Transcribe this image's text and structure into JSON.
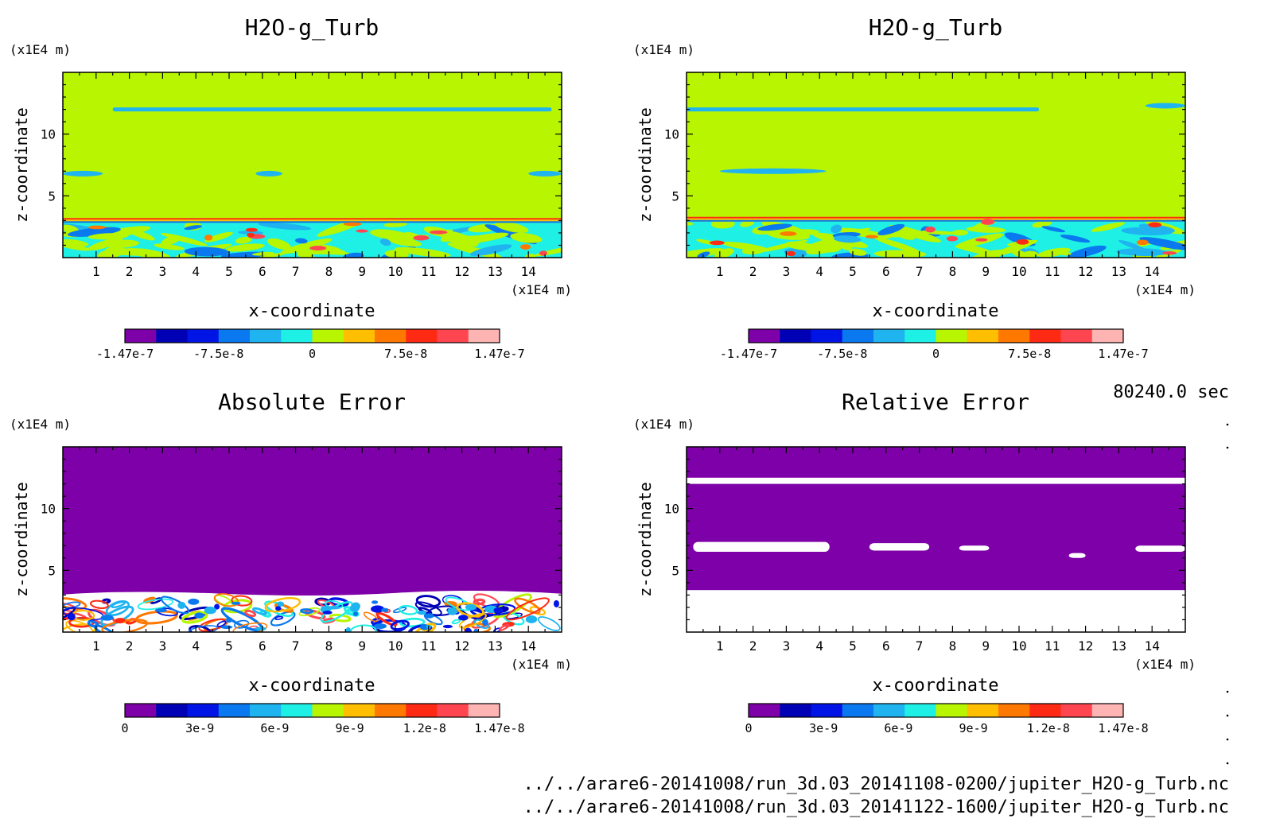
{
  "time_label": "80240.0 sec",
  "file_paths": [
    "../../arare6-20141008/run_3d.03_20141108-0200/jupiter_H2O-g_Turb.nc",
    "../../arare6-20141008/run_3d.03_20141122-1600/jupiter_H2O-g_Turb.nc"
  ],
  "colors": {
    "scale": [
      "#7e00a8",
      "#0000b4",
      "#0014e6",
      "#0a78ee",
      "#1fb4f0",
      "#1ef0e6",
      "#b8f500",
      "#ffbe00",
      "#ff7800",
      "#ff2a14",
      "#ff4650",
      "#ffb4b4"
    ],
    "field_bg": "#b8f500",
    "error_bg": "#7e00a8",
    "blank": "#ffffff"
  },
  "chart_data": [
    {
      "type": "heatmap",
      "title": "H2O-g_Turb",
      "xlabel": "x-coordinate",
      "ylabel": "z-coordinate",
      "x_unit": "(x1E4 m)",
      "y_unit": "(x1E4 m)",
      "xlim": [
        0,
        15
      ],
      "ylim": [
        0,
        15
      ],
      "x_ticks": [
        1,
        2,
        3,
        4,
        5,
        6,
        7,
        8,
        9,
        10,
        11,
        12,
        13,
        14
      ],
      "y_ticks": [
        5,
        10
      ],
      "colorbar_min": -1.47e-07,
      "colorbar_max": 1.47e-07,
      "colorbar_tick_labels": [
        "-1.47e-7",
        "-7.5e-8",
        "0",
        "7.5e-8",
        "1.47e-7"
      ],
      "features": [
        {
          "kind": "band",
          "z": 12.0,
          "x": [
            1.5,
            14.7
          ],
          "value": -3e-08
        },
        {
          "kind": "patch",
          "z": 6.8,
          "x": [
            0.0,
            1.2
          ],
          "value": -3e-08
        },
        {
          "kind": "patch",
          "z": 6.8,
          "x": [
            5.8,
            6.6
          ],
          "value": -3e-08
        },
        {
          "kind": "patch",
          "z": 6.8,
          "x": [
            14.0,
            15.0
          ],
          "value": -3e-08
        },
        {
          "kind": "turbulent_layer",
          "z": [
            0.0,
            3.2
          ],
          "value_range": [
            -1.47e-07,
            1.47e-07
          ]
        }
      ]
    },
    {
      "type": "heatmap",
      "title": "H2O-g_Turb",
      "xlabel": "x-coordinate",
      "ylabel": "z-coordinate",
      "x_unit": "(x1E4 m)",
      "y_unit": "(x1E4 m)",
      "xlim": [
        0,
        15
      ],
      "ylim": [
        0,
        15
      ],
      "x_ticks": [
        1,
        2,
        3,
        4,
        5,
        6,
        7,
        8,
        9,
        10,
        11,
        12,
        13,
        14
      ],
      "y_ticks": [
        5,
        10
      ],
      "colorbar_min": -1.47e-07,
      "colorbar_max": 1.47e-07,
      "colorbar_tick_labels": [
        "-1.47e-7",
        "-7.5e-8",
        "0",
        "7.5e-8",
        "1.47e-7"
      ],
      "features": [
        {
          "kind": "band",
          "z": 12.0,
          "x": [
            0.0,
            10.6
          ],
          "value": -3e-08
        },
        {
          "kind": "patch",
          "z": 7.0,
          "x": [
            1.0,
            4.2
          ],
          "value": -3e-08
        },
        {
          "kind": "patch",
          "z": 12.3,
          "x": [
            13.8,
            15.0
          ],
          "value": -3e-08
        },
        {
          "kind": "turbulent_layer",
          "z": [
            0.0,
            3.3
          ],
          "value_range": [
            -1.47e-07,
            1.47e-07
          ]
        }
      ]
    },
    {
      "type": "heatmap",
      "title": "Absolute Error",
      "xlabel": "x-coordinate",
      "ylabel": "z-coordinate",
      "x_unit": "(x1E4 m)",
      "y_unit": "(x1E4 m)",
      "xlim": [
        0,
        15
      ],
      "ylim": [
        0,
        15
      ],
      "x_ticks": [
        1,
        2,
        3,
        4,
        5,
        6,
        7,
        8,
        9,
        10,
        11,
        12,
        13,
        14
      ],
      "y_ticks": [
        5,
        10
      ],
      "colorbar_min": 0,
      "colorbar_max": 1.47e-08,
      "colorbar_tick_labels": [
        "0",
        "3e-9",
        "6e-9",
        "9e-9",
        "1.2e-8",
        "1.47e-8"
      ],
      "features": [
        {
          "kind": "uniform",
          "z": [
            3.3,
            15.0
          ],
          "value": 0
        },
        {
          "kind": "turbulent_layer",
          "z": [
            0.0,
            3.3
          ],
          "value_range": [
            0,
            1.47e-08
          ]
        }
      ]
    },
    {
      "type": "heatmap",
      "title": "Relative Error",
      "xlabel": "x-coordinate",
      "ylabel": "z-coordinate",
      "x_unit": "(x1E4 m)",
      "y_unit": "(x1E4 m)",
      "xlim": [
        0,
        15
      ],
      "ylim": [
        0,
        15
      ],
      "x_ticks": [
        1,
        2,
        3,
        4,
        5,
        6,
        7,
        8,
        9,
        10,
        11,
        12,
        13,
        14
      ],
      "y_ticks": [
        5,
        10
      ],
      "colorbar_min": 0,
      "colorbar_max": 1.47e-08,
      "colorbar_tick_labels": [
        "0",
        "3e-9",
        "6e-9",
        "9e-9",
        "1.2e-8",
        "1.47e-8"
      ],
      "features": [
        {
          "kind": "uniform",
          "z": [
            3.4,
            15.0
          ],
          "value": 0
        },
        {
          "kind": "missing_band",
          "z": [
            12.0,
            12.5
          ],
          "x": [
            0.0,
            15.0
          ]
        },
        {
          "kind": "missing_patch",
          "z": [
            6.5,
            7.3
          ],
          "x": [
            0.2,
            4.3
          ]
        },
        {
          "kind": "missing_patch",
          "z": [
            6.6,
            7.2
          ],
          "x": [
            5.5,
            7.3
          ]
        },
        {
          "kind": "missing_patch",
          "z": [
            6.6,
            7.0
          ],
          "x": [
            8.2,
            9.1
          ]
        },
        {
          "kind": "missing_patch",
          "z": [
            6.0,
            6.4
          ],
          "x": [
            11.5,
            12.0
          ]
        },
        {
          "kind": "missing_patch",
          "z": [
            6.5,
            7.0
          ],
          "x": [
            13.5,
            15.0
          ]
        },
        {
          "kind": "missing_region",
          "z": [
            0.0,
            3.4
          ],
          "x": [
            0.0,
            15.0
          ]
        }
      ]
    }
  ]
}
